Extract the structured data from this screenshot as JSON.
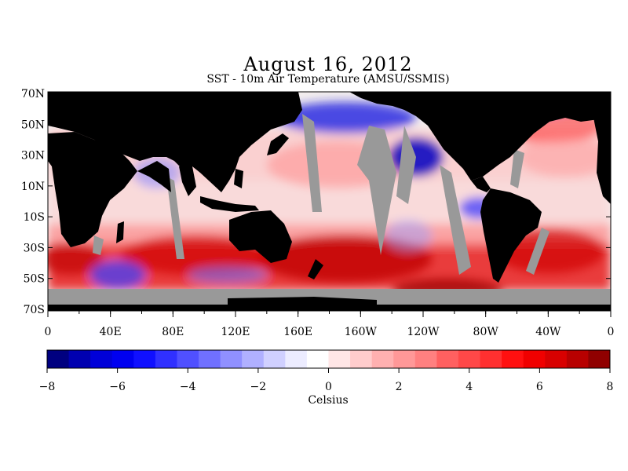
{
  "title": "August 16, 2012",
  "subtitle": "SST - 10m Air Temperature (AMSU/SSMIS)",
  "map": {
    "lat_labels": [
      "70N",
      "50N",
      "30N",
      "10N",
      "10S",
      "30S",
      "50S",
      "70S"
    ],
    "lon_labels": [
      "0",
      "40E",
      "80E",
      "120E",
      "160E",
      "160W",
      "120W",
      "80W",
      "40W",
      "0"
    ],
    "colors": {
      "land": "#000000",
      "no_data": "#999999",
      "ocean_neutral": "#f3eeee"
    }
  },
  "colorbar": {
    "tick_labels": [
      "-8",
      "-6",
      "-4",
      "-2",
      "0",
      "2",
      "4",
      "6",
      "8"
    ],
    "unit_label": "Celsius",
    "range": [
      -8,
      8
    ],
    "colors": [
      "#000080",
      "#0000b0",
      "#0000d8",
      "#0000f0",
      "#1010ff",
      "#3030ff",
      "#5050ff",
      "#7070ff",
      "#9090ff",
      "#b0b0ff",
      "#d0d0ff",
      "#ececff",
      "#ffffff",
      "#ffe6e6",
      "#ffcccc",
      "#ffb0b0",
      "#ff9898",
      "#ff8080",
      "#ff6060",
      "#ff4848",
      "#ff3030",
      "#ff1010",
      "#f00000",
      "#d80000",
      "#b80000",
      "#900000"
    ]
  }
}
